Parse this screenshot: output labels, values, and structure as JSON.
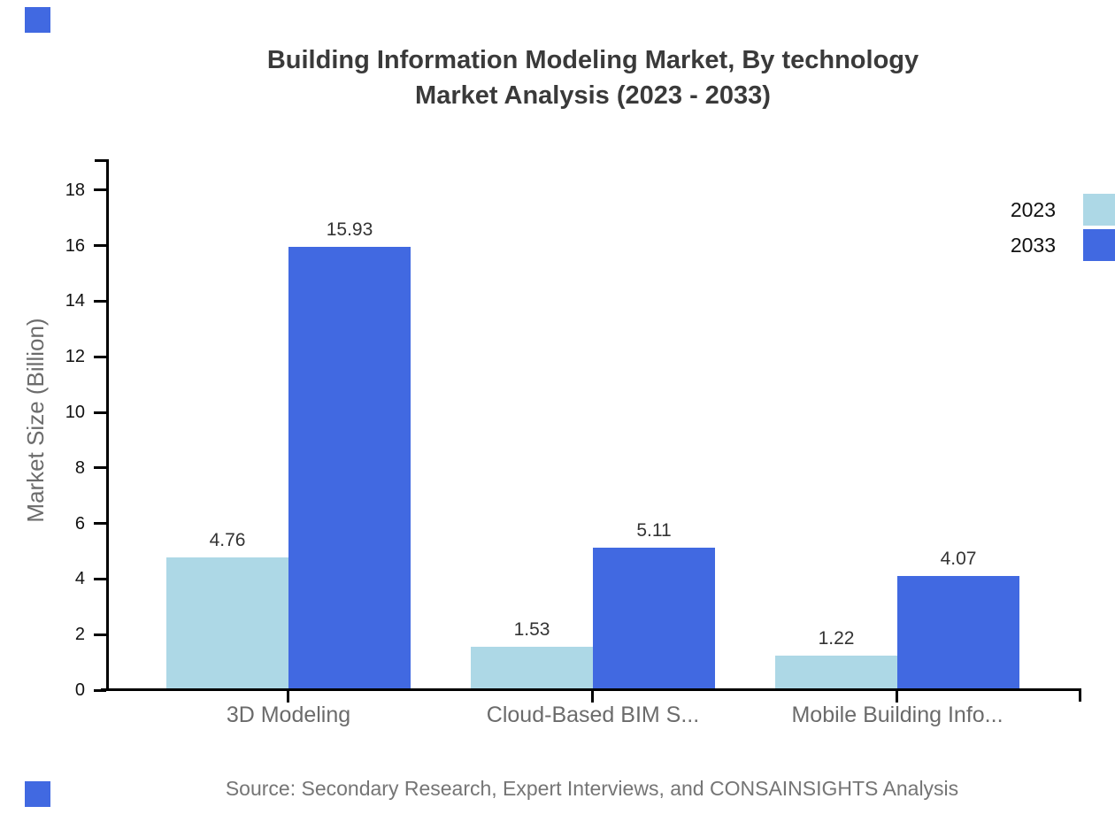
{
  "title": {
    "line1": "Building Information Modeling Market, By technology",
    "line2": "Market Analysis (2023 - 2033)"
  },
  "source": "Source: Secondary Research, Expert Interviews, and CONSAINSIGHTS Analysis",
  "legend": [
    {
      "label": "2023",
      "color": "#ADD8E6"
    },
    {
      "label": "2033",
      "color": "#4169E1"
    }
  ],
  "chart_data": {
    "type": "bar",
    "title": "Building Information Modeling Market, By technology Market Analysis (2023 - 2033)",
    "categories": [
      "3D Modeling",
      "Cloud-Based BIM S...",
      "Mobile Building Info..."
    ],
    "series": [
      {
        "name": "2023",
        "color": "#ADD8E6",
        "values": [
          4.76,
          1.53,
          1.22
        ]
      },
      {
        "name": "2033",
        "color": "#4169E1",
        "values": [
          15.93,
          5.11,
          4.07
        ]
      }
    ],
    "xlabel": "",
    "ylabel": "Market Size (Billion)",
    "ylim": [
      0,
      19
    ],
    "yticks": [
      0,
      2,
      4,
      6,
      8,
      10,
      12,
      14,
      16,
      18
    ],
    "grid": false,
    "legend_position": "top-right",
    "bar_value_labels": true
  },
  "decor": {
    "corner_mark_color": "#4169E1",
    "axis_color": "#000000"
  }
}
